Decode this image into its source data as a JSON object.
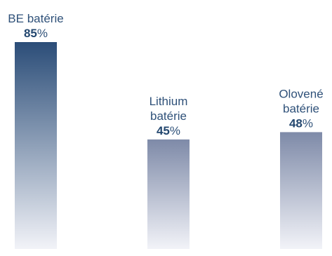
{
  "chart_data": {
    "type": "bar",
    "title": "",
    "xlabel": "",
    "ylabel": "",
    "ylim": [
      0,
      100
    ],
    "unit": "%",
    "categories": [
      [
        "BE batérie"
      ],
      [
        "Lithium",
        "batérie"
      ],
      [
        "Olovené",
        "batérie"
      ]
    ],
    "values": [
      85,
      45,
      48
    ],
    "grid": false,
    "legend": "none",
    "colors": {
      "bar_top_strong": "#2b4d78",
      "bar_top_muted": "#7e8aa8",
      "bar_bottom": "#f2f3f8",
      "label_text": "#2f5179",
      "value_text": "#23476f"
    }
  }
}
